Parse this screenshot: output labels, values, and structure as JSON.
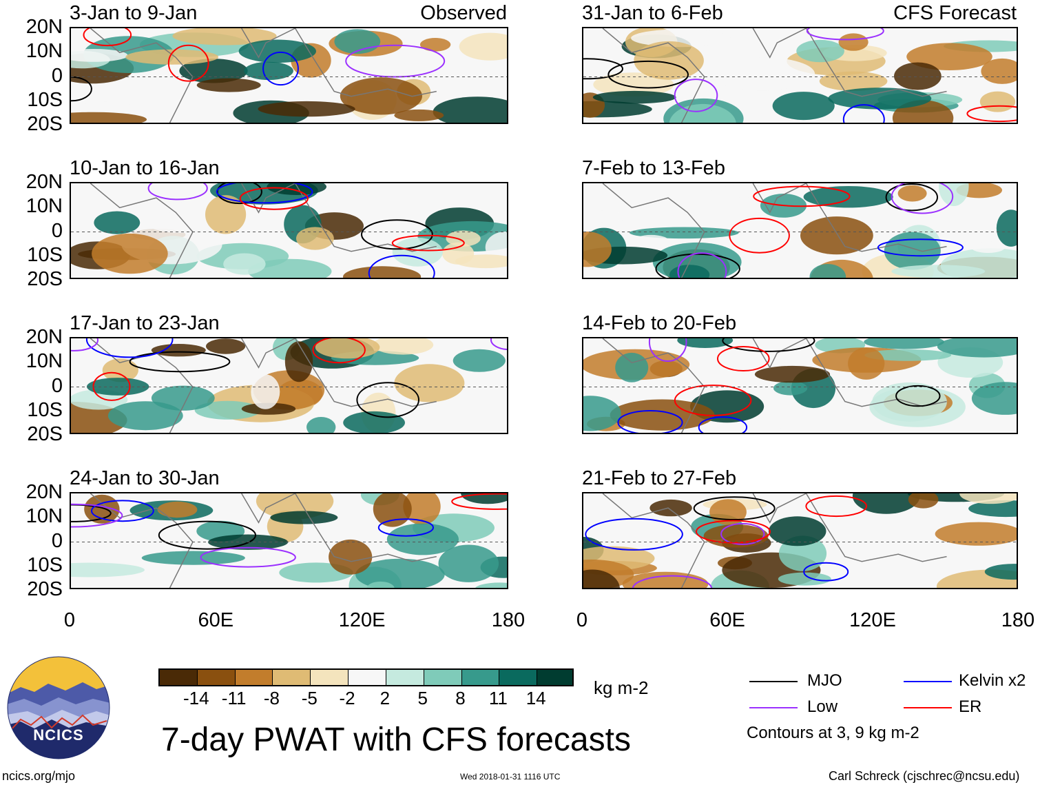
{
  "chart_data": {
    "type": "heatmap",
    "title": "7-day PWAT with CFS forecasts",
    "units": "kg m-2",
    "column_headers": [
      "Observed",
      "CFS Forecast"
    ],
    "y_ticks": [
      "20N",
      "10N",
      "0",
      "10S",
      "20S"
    ],
    "x_ticks": [
      "0",
      "60E",
      "120E",
      "180"
    ],
    "xlim": [
      0,
      180
    ],
    "ylim": [
      -20,
      20
    ],
    "panels": [
      {
        "period": "3-Jan to 9-Jan",
        "source": "Observed"
      },
      {
        "period": "10-Jan to 16-Jan",
        "source": "Observed"
      },
      {
        "period": "17-Jan to 23-Jan",
        "source": "Observed"
      },
      {
        "period": "24-Jan to 30-Jan",
        "source": "Observed"
      },
      {
        "period": "31-Jan to 6-Feb",
        "source": "CFS Forecast"
      },
      {
        "period": "7-Feb to 13-Feb",
        "source": "CFS Forecast"
      },
      {
        "period": "14-Feb to 20-Feb",
        "source": "CFS Forecast"
      },
      {
        "period": "21-Feb to 27-Feb",
        "source": "CFS Forecast"
      }
    ],
    "colorbar": {
      "ticks": [
        "-14",
        "-11",
        "-8",
        "-5",
        "-2",
        "2",
        "5",
        "8",
        "11",
        "14"
      ],
      "colors": [
        "#4a2a06",
        "#8a500f",
        "#c27d2c",
        "#dfbb74",
        "#f4e4bd",
        "#f7f7f7",
        "#c5eadf",
        "#7fcbb9",
        "#379a8c",
        "#0a6a5e",
        "#003c30"
      ]
    },
    "contour_legend": [
      {
        "name": "MJO",
        "color": "#000000"
      },
      {
        "name": "Kelvin x2",
        "color": "#0000ff"
      },
      {
        "name": "Low",
        "color": "#9b30ff"
      },
      {
        "name": "ER",
        "color": "#ff0000"
      }
    ],
    "contour_note": "Contours at 3, 9 kg m-2"
  },
  "footer": {
    "site": "ncics.org/mjo",
    "timestamp": "Wed 2018-01-31 1116 UTC",
    "author": "Carl Schreck (cjschrec@ncsu.edu)",
    "logo_text": "NCICS"
  }
}
